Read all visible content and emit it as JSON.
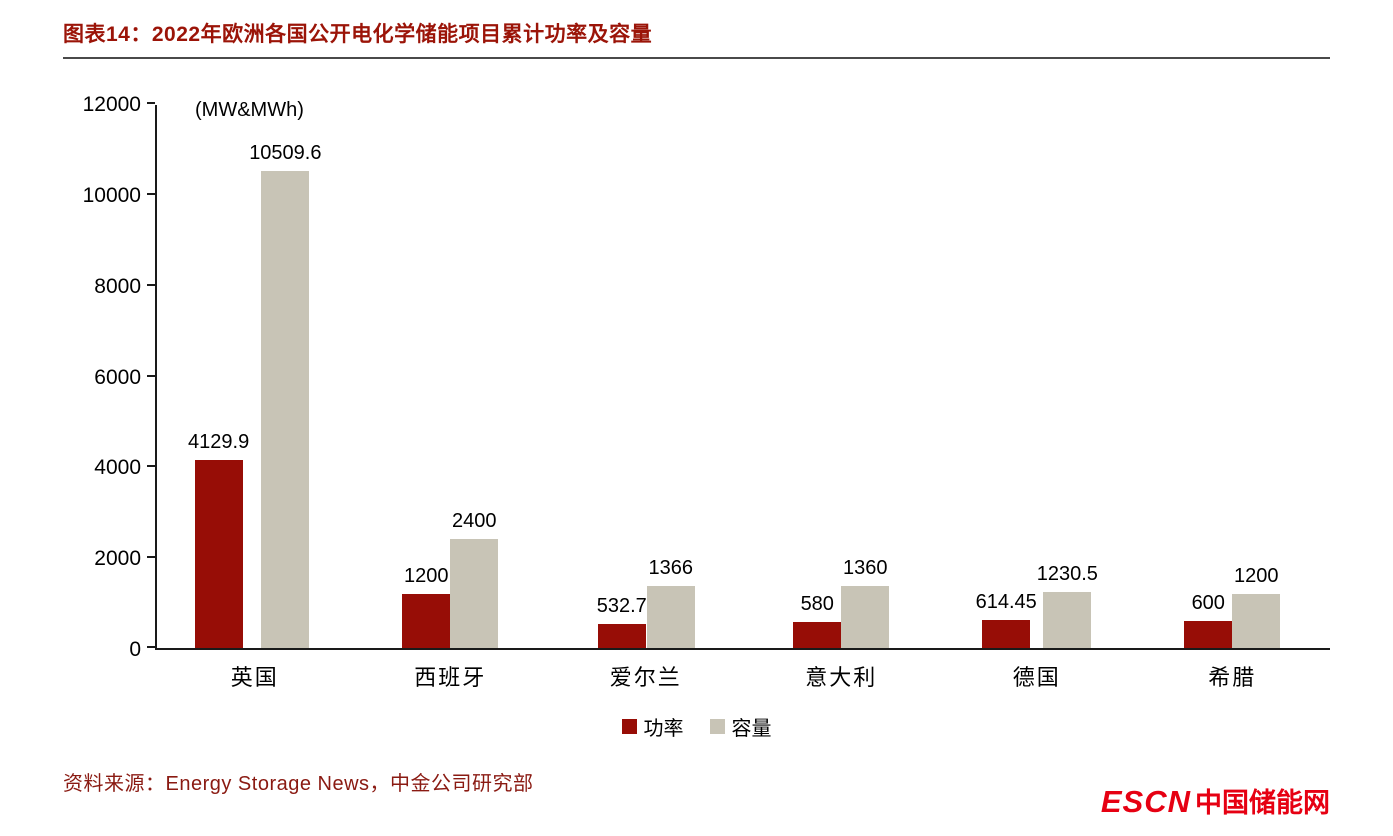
{
  "header": {
    "title": "图表14：2022年欧洲各国公开电化学储能项目累计功率及容量"
  },
  "chart_data": {
    "type": "bar",
    "title": "2022年欧洲各国公开电化学储能项目累计功率及容量",
    "unit_label": "(MW&MWh)",
    "categories": [
      "英国",
      "西班牙",
      "爱尔兰",
      "意大利",
      "德国",
      "希腊"
    ],
    "series": [
      {
        "name": "功率",
        "color": "#970d06",
        "values": [
          4129.9,
          1200,
          532.7,
          580,
          614.45,
          600
        ],
        "labels": [
          "4129.9",
          "1200",
          "532.7",
          "580",
          "614.45",
          "600"
        ]
      },
      {
        "name": "容量",
        "color": "#c8c4b6",
        "values": [
          10509.6,
          2400,
          1366,
          1360,
          1230.5,
          1200
        ],
        "labels": [
          "10509.6",
          "2400",
          "1366",
          "1360",
          "1230.5",
          "1200"
        ]
      }
    ],
    "ylim": [
      0,
      12000
    ],
    "yticks": [
      0,
      2000,
      4000,
      6000,
      8000,
      10000,
      12000
    ],
    "legend_position": "bottom",
    "grid": false
  },
  "footer": {
    "source": "资料来源：Energy Storage News，中金公司研究部"
  },
  "logo": {
    "escn": "ESCN",
    "site": "中国储能网"
  }
}
